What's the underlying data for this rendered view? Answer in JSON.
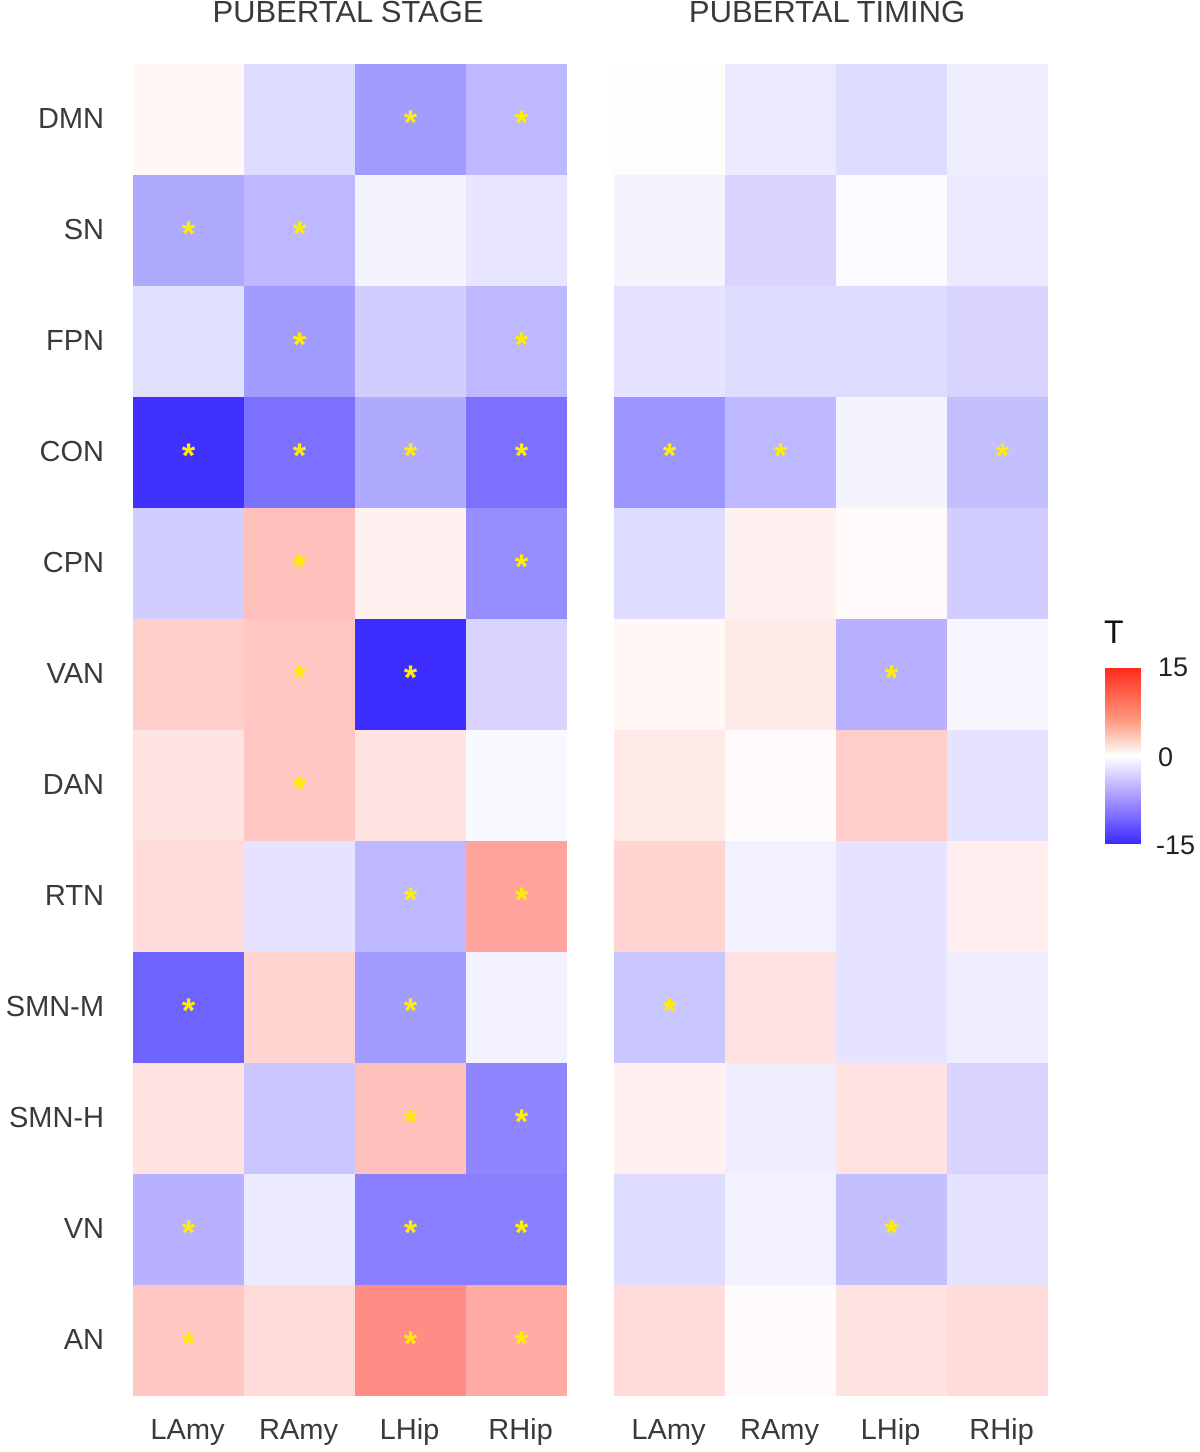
{
  "chart_data": [
    {
      "type": "heatmap",
      "title": "PUBERTAL STAGE",
      "rows": [
        "DMN",
        "SN",
        "FPN",
        "CON",
        "CPN",
        "VAN",
        "DAN",
        "RTN",
        "SMN-M",
        "SMN-H",
        "VN",
        "AN"
      ],
      "columns": [
        "LAmy",
        "RAmy",
        "LHip",
        "RHip"
      ],
      "values": [
        [
          0.5,
          -2.5,
          -7,
          -5
        ],
        [
          -6,
          -5,
          -0.8,
          -1.8
        ],
        [
          -2.2,
          -7,
          -3.5,
          -5
        ],
        [
          -14.5,
          -10,
          -6,
          -10
        ],
        [
          -3.5,
          4.5,
          1,
          -8
        ],
        [
          3.5,
          4,
          -14.8,
          -3
        ],
        [
          2,
          4,
          2,
          -0.5
        ],
        [
          2.5,
          -2,
          -5,
          6.5
        ],
        [
          -11,
          3,
          -7,
          -1
        ],
        [
          2,
          -4,
          4.5,
          -8.5
        ],
        [
          -5.5,
          -1.5,
          -9,
          -9
        ],
        [
          4,
          2.5,
          8,
          6
        ]
      ],
      "significant": [
        [
          false,
          false,
          true,
          true
        ],
        [
          true,
          true,
          false,
          false
        ],
        [
          false,
          true,
          false,
          true
        ],
        [
          true,
          true,
          true,
          true
        ],
        [
          false,
          true,
          false,
          true
        ],
        [
          false,
          true,
          true,
          false
        ],
        [
          false,
          true,
          false,
          false
        ],
        [
          false,
          false,
          true,
          true
        ],
        [
          true,
          false,
          true,
          false
        ],
        [
          false,
          false,
          true,
          true
        ],
        [
          true,
          false,
          true,
          true
        ],
        [
          true,
          false,
          true,
          true
        ]
      ]
    },
    {
      "type": "heatmap",
      "title": "PUBERTAL TIMING",
      "rows": [
        "DMN",
        "SN",
        "FPN",
        "CON",
        "CPN",
        "VAN",
        "DAN",
        "RTN",
        "SMN-M",
        "SMN-H",
        "VN",
        "AN"
      ],
      "columns": [
        "LAmy",
        "RAmy",
        "LHip",
        "RHip"
      ],
      "values": [
        [
          0.2,
          -1.5,
          -2.5,
          -1.2
        ],
        [
          -0.8,
          -3,
          -0.3,
          -1.5
        ],
        [
          -2,
          -2.5,
          -2.5,
          -3
        ],
        [
          -7.5,
          -5,
          -0.8,
          -4.5
        ],
        [
          -2.5,
          1,
          0.4,
          -3.5
        ],
        [
          0.5,
          1.5,
          -5.5,
          -0.6
        ],
        [
          1.5,
          0.3,
          3.5,
          -2
        ],
        [
          3,
          -1,
          -2,
          1.2
        ],
        [
          -4,
          2,
          -2,
          -1.2
        ],
        [
          1,
          -1.2,
          2,
          -3
        ],
        [
          -2.5,
          -1,
          -4.5,
          -2
        ],
        [
          2.5,
          0.3,
          2,
          2.5
        ]
      ],
      "significant": [
        [
          false,
          false,
          false,
          false
        ],
        [
          false,
          false,
          false,
          false
        ],
        [
          false,
          false,
          false,
          false
        ],
        [
          true,
          true,
          false,
          true
        ],
        [
          false,
          false,
          false,
          false
        ],
        [
          false,
          false,
          true,
          false
        ],
        [
          false,
          false,
          false,
          false
        ],
        [
          false,
          false,
          false,
          false
        ],
        [
          true,
          false,
          false,
          false
        ],
        [
          false,
          false,
          false,
          false
        ],
        [
          false,
          false,
          true,
          false
        ],
        [
          false,
          false,
          false,
          false
        ]
      ]
    }
  ],
  "legend": {
    "title": "T",
    "max_label": "15",
    "mid_label": "0",
    "min_label": "-15",
    "range": [
      -15,
      15
    ],
    "colors": {
      "high": "#ff2a1a",
      "mid": "#ffffff",
      "low": "#3a2aff"
    }
  },
  "marker": {
    "symbol": "*",
    "color": "#ffee00"
  }
}
